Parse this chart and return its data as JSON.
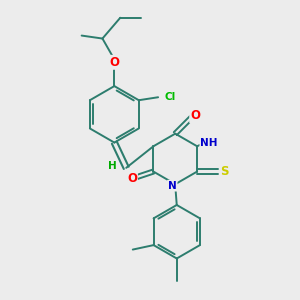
{
  "background_color": "#ececec",
  "bond_color": "#2d7d6e",
  "atom_colors": {
    "O": "#ff0000",
    "N": "#0000cc",
    "Cl": "#00bb00",
    "S": "#cccc00",
    "H": "#00aa00",
    "C": "#2d7d6e"
  },
  "figsize": [
    3.0,
    3.0
  ],
  "dpi": 100
}
